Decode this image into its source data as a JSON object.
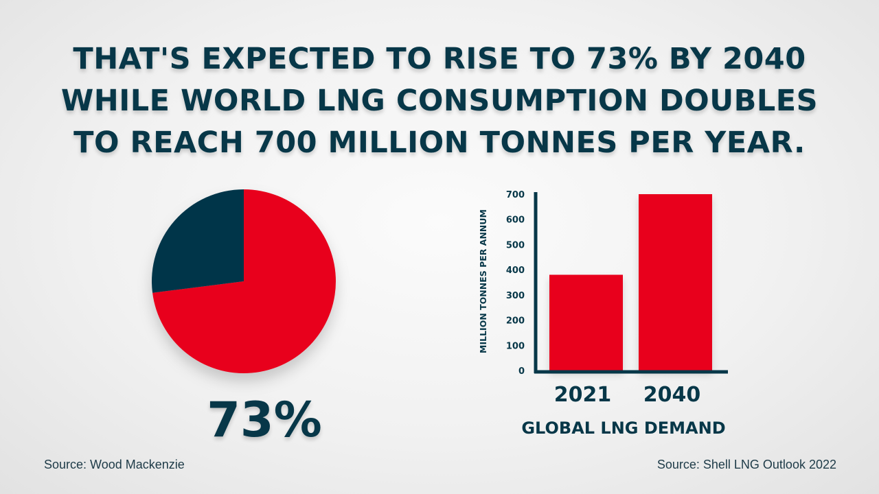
{
  "headline": {
    "line1": "THAT'S EXPECTED TO RISE TO 73% BY 2040",
    "line2": "WHILE WORLD LNG CONSUMPTION DOUBLES",
    "line3": "TO REACH 700 MILLION TONNES PER YEAR."
  },
  "colors": {
    "text": "#073748",
    "accent": "#e8001d",
    "dark_slice": "#06364a"
  },
  "sources": {
    "left": "Source: Wood Mackenzie",
    "right": "Source: Shell LNG Outlook 2022"
  },
  "chart_data": [
    {
      "type": "pie",
      "slices": [
        {
          "label": "73%",
          "value": 73,
          "color": "#e8001d"
        },
        {
          "value": 27,
          "color": "#06364a"
        }
      ],
      "value_label": "73%"
    },
    {
      "type": "bar",
      "categories": [
        "2021",
        "2040"
      ],
      "values": [
        380,
        700
      ],
      "ylabel": "MILLION TONNES PER ANNUM",
      "xlabel": "GLOBAL LNG DEMAND",
      "ylim": [
        0,
        700
      ],
      "yticks": [
        0,
        100,
        200,
        300,
        400,
        500,
        600,
        700
      ],
      "grid": false,
      "bar_color": "#e8001d"
    }
  ]
}
